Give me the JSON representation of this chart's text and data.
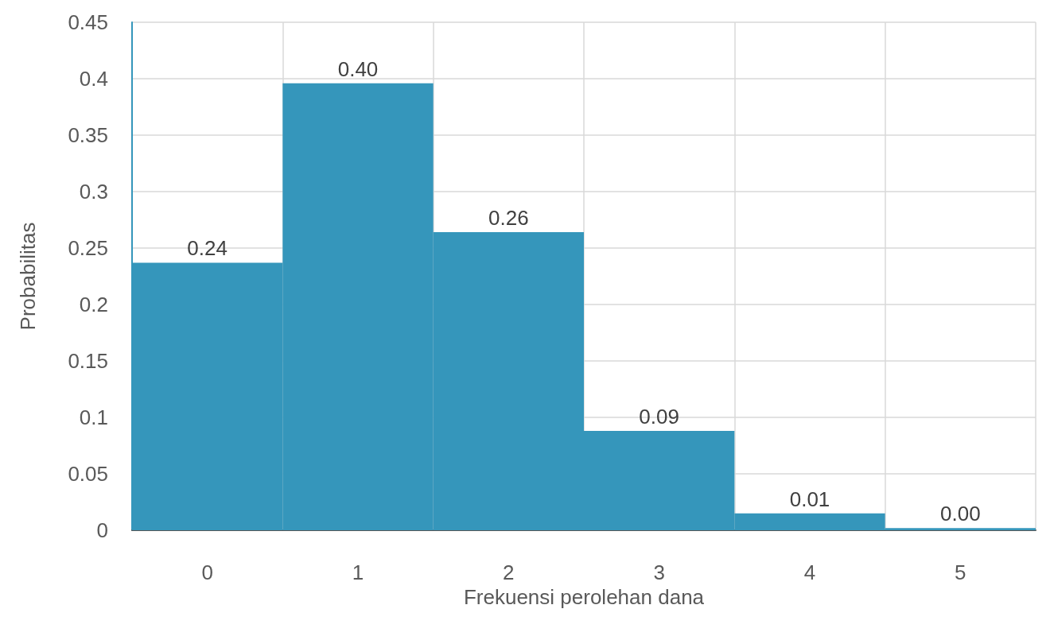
{
  "chart_data": {
    "type": "bar",
    "xlabel": "Frekuensi perolehan dana",
    "ylabel": "Probabilitas",
    "categories": [
      "0",
      "1",
      "2",
      "3",
      "4",
      "5"
    ],
    "values": [
      0.237,
      0.396,
      0.264,
      0.088,
      0.015,
      0.002
    ],
    "value_labels": [
      "0.24",
      "0.40",
      "0.26",
      "0.09",
      "0.01",
      "0.00"
    ],
    "color": "#3596bb",
    "ylim": [
      0,
      0.45
    ],
    "yticks": [
      0,
      0.05,
      0.1,
      0.15,
      0.2,
      0.25,
      0.3,
      0.35,
      0.4,
      0.45
    ],
    "grid": true
  }
}
